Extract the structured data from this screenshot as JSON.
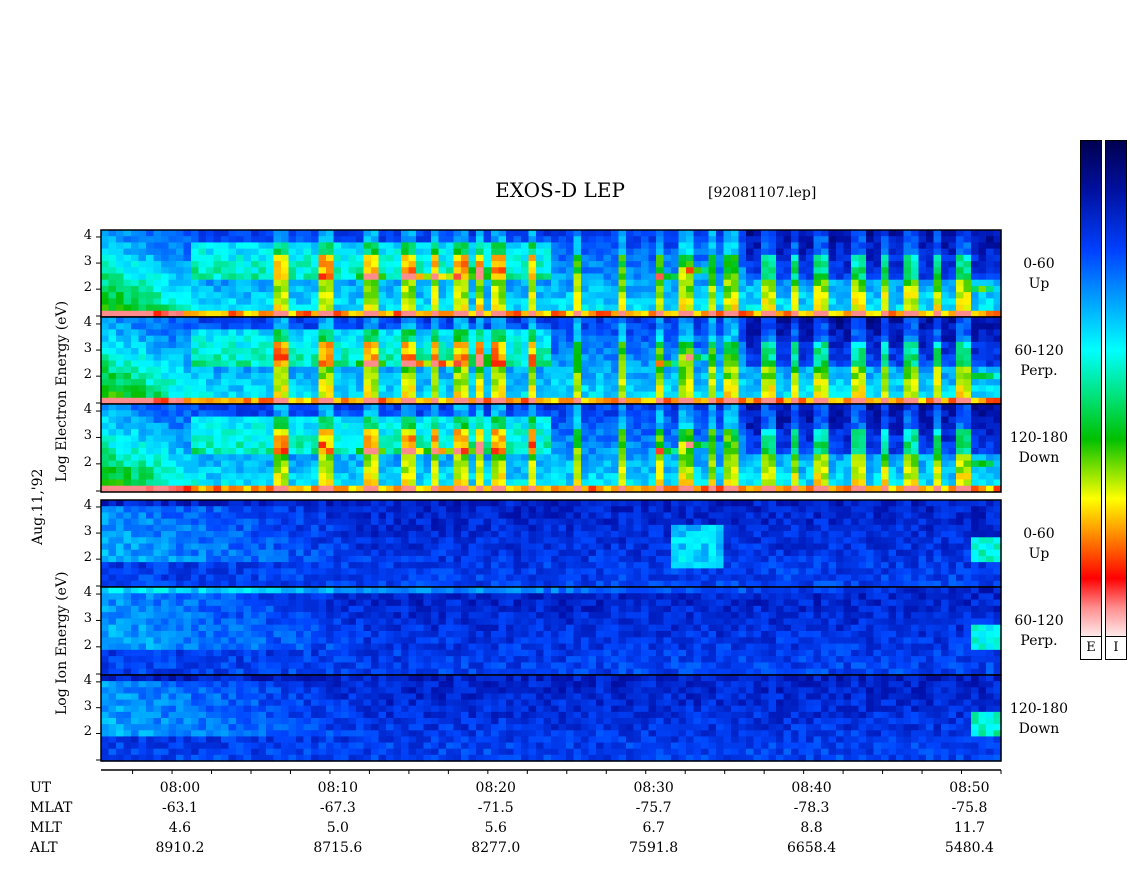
{
  "title": "EXOS-D LEP",
  "file_name": "[92081107.lep]",
  "date_label": "Aug.11,'92",
  "electron_label": "Log   Electron   Energy (eV)",
  "ion_label": "Log   Ion   Energy (eV)",
  "colorbar_labels": [
    "E",
    "I"
  ],
  "x_row_labels": [
    "UT",
    "MLAT",
    "MLT",
    "ALT"
  ],
  "chart_data": {
    "type": "heatmap",
    "x_ticks_ut": [
      "08:00",
      "08:10",
      "08:20",
      "08:30",
      "08:40",
      "08:50"
    ],
    "x_range_minutes": [
      -5,
      52
    ],
    "ephemeris": {
      "MLAT": [
        "-63.1",
        "-67.3",
        "-71.5",
        "-75.7",
        "-78.3",
        "-75.8"
      ],
      "MLT": [
        "4.6",
        "5.0",
        "5.6",
        "6.7",
        "8.8",
        "11.7"
      ],
      "ALT": [
        "8910.2",
        "8715.6",
        "8277.0",
        "7591.8",
        "6658.4",
        "5480.4"
      ]
    },
    "y_ticks": [
      "4",
      "3",
      "2"
    ],
    "panels": [
      {
        "species": "Electron",
        "pitch_angle": "0-60",
        "direction": "Up"
      },
      {
        "species": "Electron",
        "pitch_angle": "60-120",
        "direction": "Perp."
      },
      {
        "species": "Electron",
        "pitch_angle": "120-180",
        "direction": "Down"
      },
      {
        "species": "Ion",
        "pitch_angle": "0-60",
        "direction": "Up"
      },
      {
        "species": "Ion",
        "pitch_angle": "60-120",
        "direction": "Perp."
      },
      {
        "species": "Ion",
        "pitch_angle": "120-180",
        "direction": "Down"
      }
    ],
    "colormap": [
      "#000050",
      "#0040ff",
      "#00ffff",
      "#00c000",
      "#ffff00",
      "#ff0000",
      "#fff0f0"
    ]
  }
}
